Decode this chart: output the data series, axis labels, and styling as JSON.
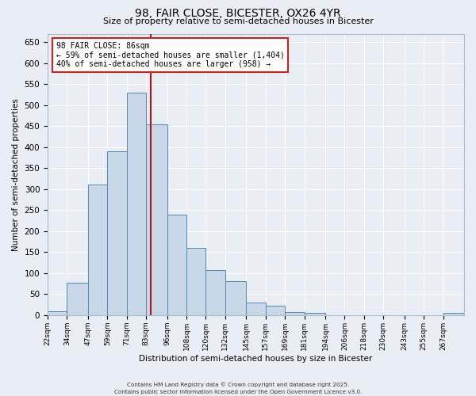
{
  "title": "98, FAIR CLOSE, BICESTER, OX26 4YR",
  "subtitle": "Size of property relative to semi-detached houses in Bicester",
  "xlabel": "Distribution of semi-detached houses by size in Bicester",
  "ylabel": "Number of semi-detached properties",
  "bin_edges": [
    22,
    34,
    47,
    59,
    71,
    83,
    96,
    108,
    120,
    132,
    145,
    157,
    169,
    181,
    194,
    206,
    218,
    230,
    243,
    255,
    267,
    280
  ],
  "bin_labels": [
    "22sqm",
    "34sqm",
    "47sqm",
    "59sqm",
    "71sqm",
    "83sqm",
    "96sqm",
    "108sqm",
    "120sqm",
    "132sqm",
    "145sqm",
    "157sqm",
    "169sqm",
    "181sqm",
    "194sqm",
    "206sqm",
    "218sqm",
    "230sqm",
    "243sqm",
    "255sqm",
    "267sqm"
  ],
  "counts": [
    10,
    78,
    310,
    390,
    530,
    455,
    240,
    160,
    107,
    80,
    30,
    22,
    7,
    5,
    0,
    0,
    0,
    0,
    0,
    0,
    5
  ],
  "bar_color": "#c8d8e8",
  "bar_edge_color": "#5588aa",
  "vline_x": 86,
  "vline_color": "#bb1111",
  "annotation_line1": "98 FAIR CLOSE: 86sqm",
  "annotation_line2": "← 59% of semi-detached houses are smaller (1,404)",
  "annotation_line3": "40% of semi-detached houses are larger (958) →",
  "annotation_box_color": "#ffffff",
  "annotation_box_edge": "#cc2222",
  "ylim": [
    0,
    670
  ],
  "yticks": [
    0,
    50,
    100,
    150,
    200,
    250,
    300,
    350,
    400,
    450,
    500,
    550,
    600,
    650
  ],
  "background_color": "#e8eef4",
  "grid_color": "#ffffff",
  "title_fontsize": 10,
  "subtitle_fontsize": 8,
  "footer1": "Contains HM Land Registry data © Crown copyright and database right 2025.",
  "footer2": "Contains public sector information licensed under the Open Government Licence v3.0."
}
